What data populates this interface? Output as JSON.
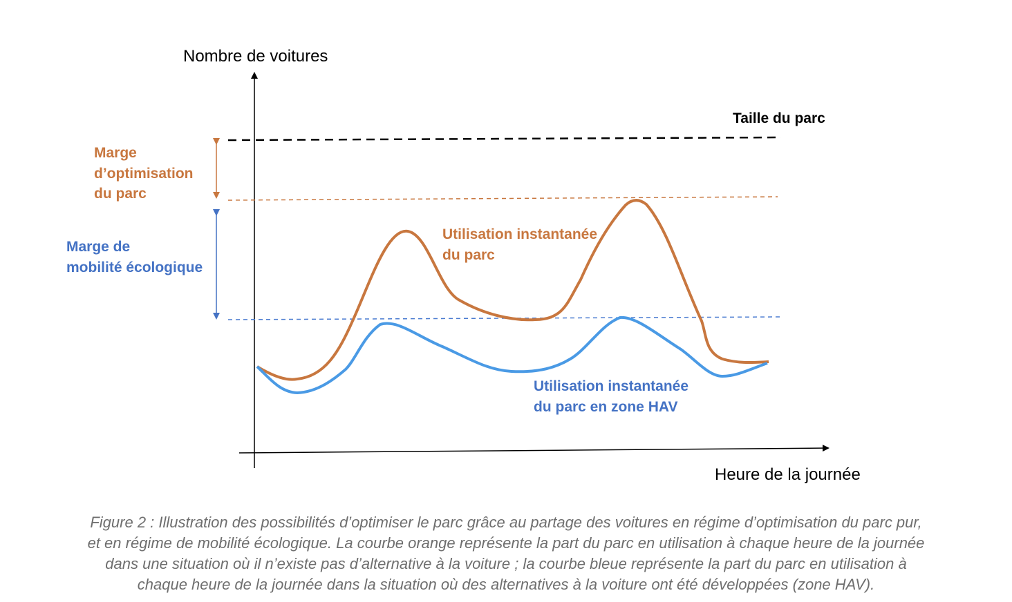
{
  "colors": {
    "orange": "#C8773F",
    "blue": "#4A90E2",
    "label_blue": "#4472C4",
    "black": "#000000",
    "caption_gray": "#6e6e6e"
  },
  "axes": {
    "y_label": "Nombre de voitures",
    "x_label": "Heure de la journée"
  },
  "reference_lines": {
    "fleet_size_label": "Taille du parc"
  },
  "annotations": {
    "optimisation_margin": [
      "Marge",
      "d’optimisation",
      "du parc"
    ],
    "ecological_margin": [
      "Marge de",
      "mobilité écologique"
    ]
  },
  "curves": {
    "orange_label": [
      "Utilisation instantanée",
      "du parc"
    ],
    "blue_label": [
      "Utilisation instantanée",
      "du parc en zone HAV"
    ]
  },
  "caption": {
    "lines": [
      "Figure 2 : Illustration des possibilités d’optimiser le parc grâce au partage des voitures en régime d’optimisation du parc pur,",
      "et en régime de mobilité écologique. La courbe orange représente la part du parc en utilisation à chaque heure de la journée",
      "dans une situation où il n’existe pas d’alternative à la voiture ; la courbe bleue représente la part du parc en utilisation à",
      "chaque heure de la journée dans la situation où des alternatives à la voiture ont été développées (zone HAV)."
    ]
  }
}
